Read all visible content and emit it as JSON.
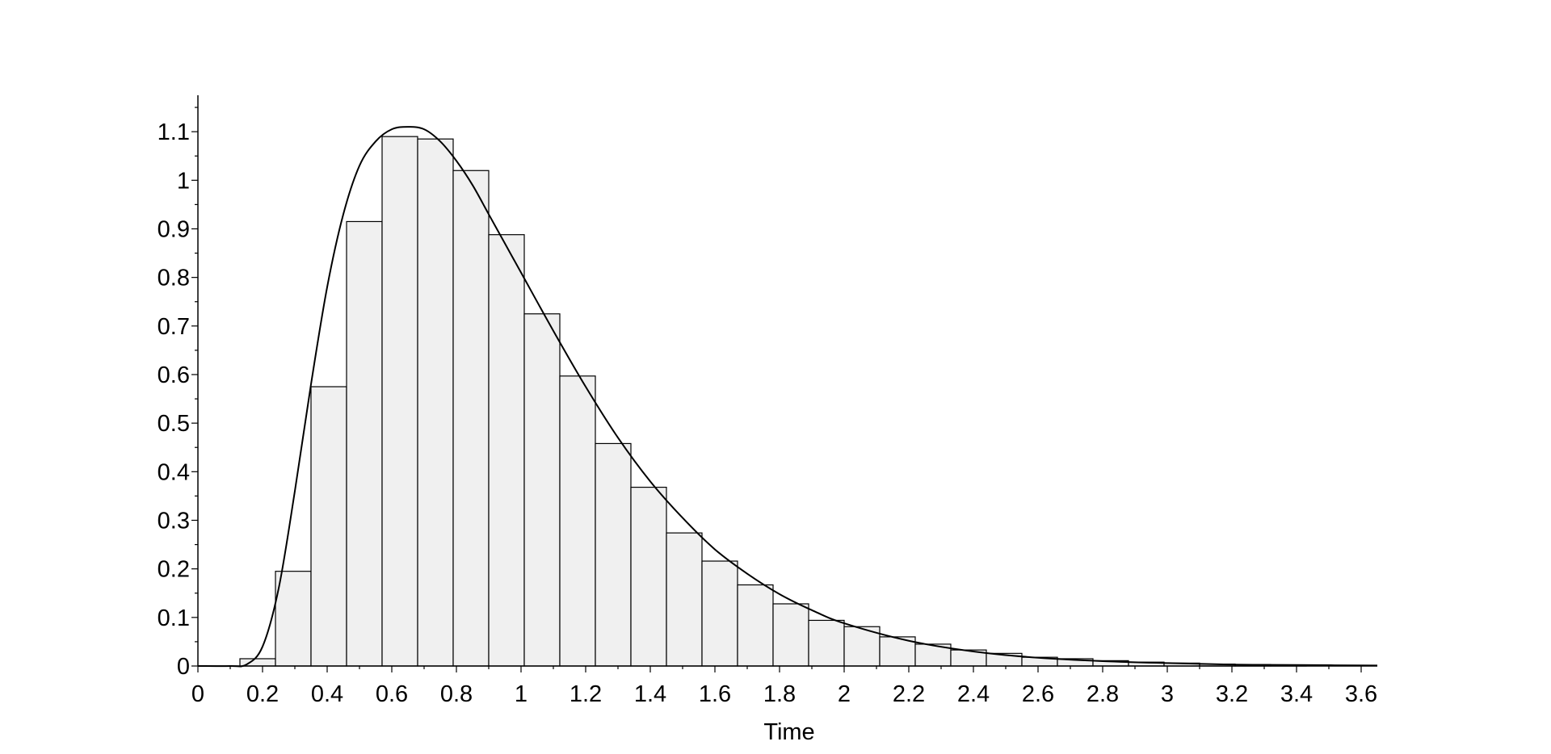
{
  "chart_data": {
    "type": "bar",
    "title": "",
    "xlabel": "Time",
    "ylabel": "",
    "xlim": [
      0,
      3.65
    ],
    "ylim": [
      0,
      1.18
    ],
    "grid": false,
    "xticks": [
      "0",
      "0.2",
      "0.4",
      "0.6",
      "0.8",
      "1",
      "1.2",
      "1.4",
      "1.6",
      "1.8",
      "2",
      "2.2",
      "2.4",
      "2.6",
      "2.8",
      "3",
      "3.2",
      "3.4",
      "3.6"
    ],
    "yticks": [
      "0",
      "0.1",
      "0.2",
      "0.3",
      "0.4",
      "0.5",
      "0.6",
      "0.7",
      "0.8",
      "0.9",
      "1",
      "1.1"
    ],
    "histogram": {
      "bin_edges": [
        0.13,
        0.24,
        0.35,
        0.46,
        0.57,
        0.68,
        0.79,
        0.9,
        1.01,
        1.12,
        1.23,
        1.34,
        1.45,
        1.56,
        1.67,
        1.78,
        1.89,
        2.0,
        2.11,
        2.22,
        2.33,
        2.44,
        2.55,
        2.66,
        2.77,
        2.88,
        2.99,
        3.1,
        3.21,
        3.32,
        3.43
      ],
      "values": [
        0.015,
        0.195,
        0.575,
        0.915,
        1.09,
        1.085,
        1.02,
        0.888,
        0.725,
        0.597,
        0.458,
        0.368,
        0.274,
        0.216,
        0.167,
        0.128,
        0.094,
        0.081,
        0.06,
        0.045,
        0.033,
        0.026,
        0.018,
        0.015,
        0.011,
        0.008,
        0.006,
        0.004,
        0.003,
        0.002
      ]
    },
    "curve": {
      "x": [
        0.0,
        0.1,
        0.15,
        0.2,
        0.25,
        0.3,
        0.35,
        0.4,
        0.45,
        0.5,
        0.55,
        0.6,
        0.65,
        0.7,
        0.75,
        0.8,
        0.85,
        0.9,
        0.95,
        1.0,
        1.1,
        1.2,
        1.3,
        1.4,
        1.5,
        1.6,
        1.7,
        1.8,
        1.9,
        2.0,
        2.2,
        2.4,
        2.6,
        2.8,
        3.0,
        3.2,
        3.4,
        3.65
      ],
      "y": [
        0.0,
        0.0,
        0.003,
        0.04,
        0.16,
        0.36,
        0.58,
        0.78,
        0.93,
        1.03,
        1.08,
        1.105,
        1.11,
        1.105,
        1.08,
        1.04,
        0.99,
        0.93,
        0.87,
        0.81,
        0.69,
        0.575,
        0.47,
        0.38,
        0.305,
        0.24,
        0.19,
        0.148,
        0.115,
        0.088,
        0.052,
        0.03,
        0.017,
        0.01,
        0.006,
        0.003,
        0.002,
        0.001
      ]
    }
  }
}
